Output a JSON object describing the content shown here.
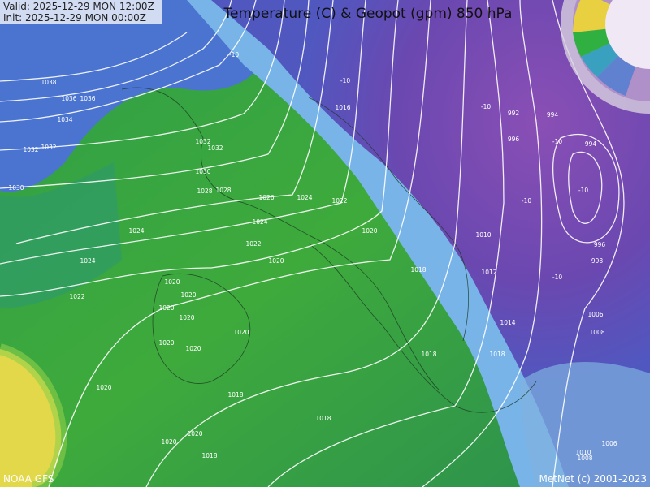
{
  "header": {
    "valid": "Valid:  2025-12-29 MON 12:00Z",
    "init": "Init:    2025-12-29 MON 00:00Z",
    "title": "Temperature (C) & Geopot (gpm) 850 hPa"
  },
  "footer": {
    "source": "NOAA GFS",
    "credit": "MetNet (c) 2001-2023"
  },
  "contour_labels": [
    "1038",
    "1036",
    "1036",
    "1034",
    "1032",
    "1032",
    "1030",
    "1032",
    "1032",
    "1030",
    "1028",
    "1028",
    "1026",
    "1024",
    "1022",
    "1024",
    "1022",
    "1020",
    "1020",
    "1024",
    "1024",
    "1022",
    "1020",
    "1020",
    "1020",
    "1020",
    "1020",
    "1020",
    "1020",
    "1018",
    "1018",
    "1018",
    "1020",
    "1018",
    "1018",
    "1020",
    "1020",
    "1018",
    "1010",
    "1012",
    "1014",
    "1016",
    "-10",
    "-10",
    "-10",
    "-10",
    "-10",
    "-10",
    "-10",
    "992",
    "994",
    "996",
    "994",
    "996",
    "998",
    "1006",
    "1008",
    "1006",
    "1008",
    "1010"
  ]
}
